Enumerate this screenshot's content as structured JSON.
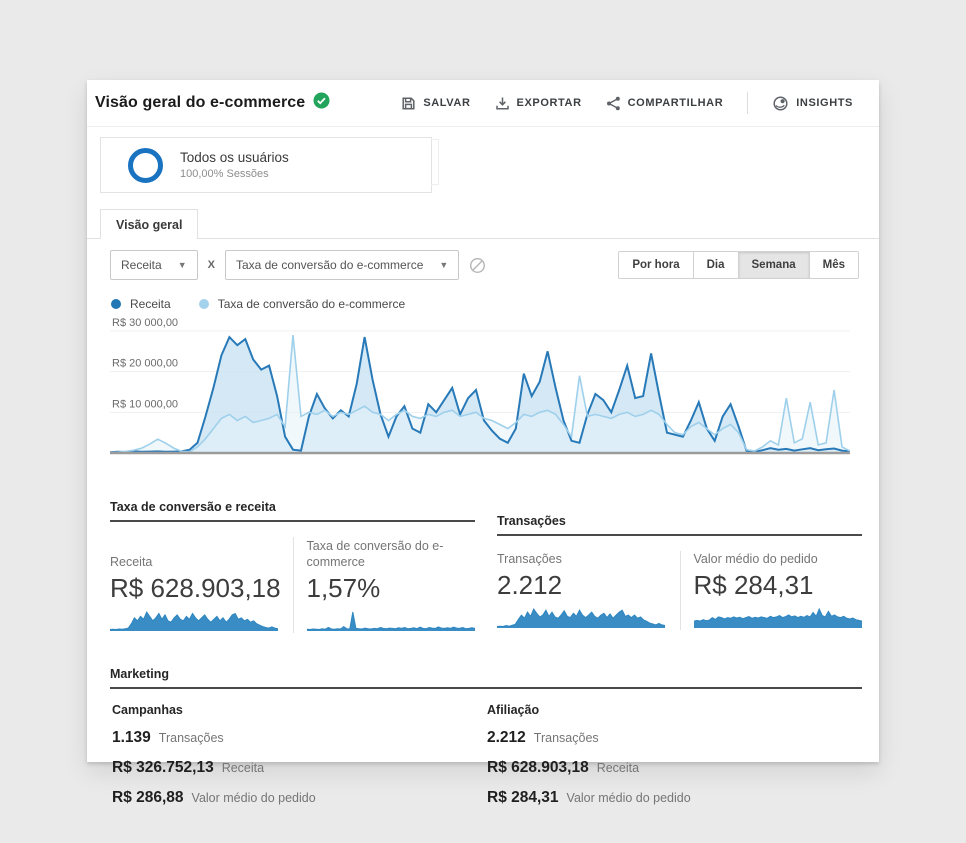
{
  "header": {
    "title": "Visão geral do e-commerce",
    "actions": [
      {
        "label": "SALVAR",
        "icon": "save-icon"
      },
      {
        "label": "EXPORTAR",
        "icon": "export-icon"
      },
      {
        "label": "COMPARTILHAR",
        "icon": "share-icon"
      },
      {
        "label": "INSIGHTS",
        "icon": "insights-icon"
      }
    ]
  },
  "segment": {
    "name": "Todos os usuários",
    "detail": "100,00% Sessões"
  },
  "tabs": [
    {
      "label": "Visão geral",
      "selected": true
    }
  ],
  "controls": {
    "metric_primary": "Receita",
    "separator": "X",
    "metric_secondary": "Taxa de conversão do e-commerce",
    "granularity": [
      {
        "label": "Por hora",
        "selected": false
      },
      {
        "label": "Dia",
        "selected": false
      },
      {
        "label": "Semana",
        "selected": true
      },
      {
        "label": "Mês",
        "selected": false
      }
    ]
  },
  "legend": [
    {
      "label": "Receita",
      "color": "#1f77b4"
    },
    {
      "label": "Taxa de conversão do e-commerce",
      "color": "#a3d3ec"
    }
  ],
  "chart_data": [
    {
      "type": "area",
      "granularity": "Semana",
      "ylim": [
        0,
        32000
      ],
      "yticks": [
        {
          "label": "R$ 30 000,00",
          "value": 30000
        },
        {
          "label": "R$ 20 000,00",
          "value": 20000
        },
        {
          "label": "R$ 10 000,00",
          "value": 10000
        }
      ],
      "legend_position": "top-left",
      "grid": true,
      "series": [
        {
          "name": "Receita",
          "color": "#2879b8",
          "fill": "#c9e2f2",
          "values": [
            200,
            300,
            250,
            400,
            300,
            350,
            400,
            300,
            350,
            400,
            800,
            2500,
            9000,
            16000,
            24000,
            28500,
            26500,
            28000,
            23000,
            20500,
            21500,
            14000,
            4000,
            800,
            600,
            9000,
            14500,
            11000,
            8500,
            10500,
            9000,
            17000,
            28500,
            18000,
            9500,
            4000,
            9000,
            11500,
            6000,
            5000,
            12000,
            10000,
            13000,
            16000,
            9500,
            13500,
            15500,
            8000,
            5500,
            3500,
            2500,
            6000,
            19500,
            14000,
            17500,
            25000,
            16000,
            8000,
            3000,
            2500,
            9500,
            14500,
            13000,
            10000,
            15500,
            21500,
            13500,
            14000,
            24500,
            14500,
            5000,
            4500,
            4000,
            8000,
            12500,
            6000,
            3000,
            9000,
            12000,
            6500,
            500,
            300,
            700,
            1200,
            800,
            1000,
            600,
            900,
            1200,
            700,
            900,
            1100,
            600,
            400
          ]
        },
        {
          "name": "Taxa de conversão do e-commerce",
          "color": "#9fd0eb",
          "fill": "#e4f2fa",
          "values": [
            100,
            200,
            400,
            700,
            1200,
            2200,
            3400,
            2400,
            1200,
            400,
            300,
            1500,
            3500,
            6000,
            8500,
            9500,
            8000,
            9000,
            7500,
            8000,
            8500,
            9500,
            6500,
            29000,
            9000,
            10000,
            9500,
            10500,
            9000,
            10000,
            9500,
            10500,
            11500,
            10000,
            9500,
            8000,
            9500,
            10500,
            9000,
            8500,
            9500,
            9000,
            10000,
            10500,
            9000,
            9500,
            10000,
            8500,
            8000,
            7000,
            6000,
            7500,
            9500,
            9000,
            10000,
            10500,
            9500,
            7000,
            4000,
            19000,
            9000,
            9500,
            9000,
            8500,
            9500,
            10000,
            9000,
            9500,
            10500,
            9500,
            7000,
            5000,
            4500,
            6500,
            7500,
            6000,
            4500,
            6000,
            7000,
            5000,
            800,
            500,
            1500,
            3000,
            2000,
            13500,
            2500,
            3500,
            12500,
            2000,
            2500,
            15500,
            1500,
            500
          ]
        }
      ]
    },
    {
      "type": "sparkline",
      "name": "Receita",
      "values": [
        0.5,
        0.6,
        0.5,
        0.7,
        0.6,
        0.8,
        1,
        2.5,
        4.5,
        3.5,
        5,
        4,
        6.5,
        5,
        3.5,
        4.5,
        6,
        4,
        5.5,
        3.5,
        3,
        4.5,
        5.5,
        4,
        3.5,
        5,
        4,
        6,
        4.5,
        3.5,
        4.5,
        5.5,
        4,
        3,
        4,
        5,
        3.5,
        4.5,
        3,
        4,
        5.5,
        6,
        4,
        4.5,
        3.5,
        4,
        3,
        3.5,
        2.5,
        2,
        1.5,
        1.2,
        1,
        1.4,
        1,
        0.8
      ]
    },
    {
      "type": "sparkline",
      "name": "Taxa de conversão do e-commerce",
      "values": [
        0.6,
        0.5,
        0.7,
        0.6,
        0.5,
        0.8,
        0.6,
        1.2,
        0.7,
        0.6,
        0.8,
        0.7,
        1.5,
        0.8,
        0.7,
        6.5,
        0.9,
        0.8,
        0.7,
        1,
        0.8,
        0.7,
        0.9,
        0.8,
        1.2,
        0.9,
        0.8,
        1,
        0.9,
        0.8,
        1.1,
        0.9,
        1.2,
        0.8,
        0.9,
        1.1,
        0.8,
        1.3,
        0.9,
        0.8,
        1.2,
        1,
        0.9,
        1.4,
        1,
        0.9,
        1.1,
        0.9,
        1.3,
        1,
        0.9,
        1.2,
        0.8,
        0.9,
        1.1,
        0.9
      ]
    },
    {
      "type": "sparkline",
      "name": "Transações",
      "values": [
        0.5,
        0.6,
        0.5,
        0.8,
        0.6,
        0.9,
        1.2,
        2.8,
        4.2,
        3.2,
        5.2,
        3.8,
        6.2,
        4.8,
        3.6,
        4.2,
        5.8,
        3.8,
        5.2,
        3.6,
        3.2,
        4.2,
        5.6,
        3.8,
        3.4,
        4.8,
        3.8,
        5.8,
        4.2,
        3.4,
        4.2,
        5.2,
        3.8,
        3.2,
        4.2,
        4.8,
        3.4,
        4.6,
        3.2,
        4.2,
        5.2,
        5.8,
        3.8,
        4.2,
        3.4,
        4.2,
        3.2,
        3.6,
        2.6,
        2.2,
        1.6,
        1.3,
        1,
        1.5,
        1,
        0.8
      ]
    },
    {
      "type": "sparkline",
      "name": "Valor médio do pedido",
      "values": [
        2,
        2.2,
        2,
        2.4,
        2.1,
        2.3,
        3,
        2.5,
        3.2,
        3,
        2.6,
        3,
        2.8,
        3.2,
        2.9,
        3.1,
        2.7,
        3,
        3.3,
        2.8,
        3.1,
        2.9,
        3.2,
        3,
        2.8,
        3.4,
        3,
        3.2,
        3.6,
        3,
        3.3,
        3.8,
        3.2,
        3.5,
        3,
        3.4,
        3.1,
        3.6,
        3.2,
        4.5,
        3.4,
        5.5,
        3.6,
        3.2,
        4.8,
        3.4,
        3.8,
        3.2,
        3,
        3.4,
        2.8,
        2.6,
        2.9,
        2.4,
        2.2,
        2
      ]
    }
  ],
  "sections": {
    "conversion": {
      "title": "Taxa de conversão e receita",
      "metrics": [
        {
          "label": "Receita",
          "value": "R$ 628.903,18"
        },
        {
          "label": "Taxa de conversão do e-commerce",
          "value": "1,57%"
        }
      ]
    },
    "transactions": {
      "title": "Transações",
      "metrics": [
        {
          "label": "Transações",
          "value": "2.212"
        },
        {
          "label": "Valor médio do pedido",
          "value": "R$ 284,31"
        }
      ]
    }
  },
  "marketing": {
    "title": "Marketing",
    "columns": [
      {
        "name": "Campanhas",
        "rows": [
          {
            "value": "1.139",
            "label": "Transações"
          },
          {
            "value": "R$ 326.752,13",
            "label": "Receita"
          },
          {
            "value": "R$ 286,88",
            "label": "Valor médio do pedido"
          }
        ]
      },
      {
        "name": "Afiliação",
        "rows": [
          {
            "value": "2.212",
            "label": "Transações"
          },
          {
            "value": "R$ 628.903,18",
            "label": "Receita"
          },
          {
            "value": "R$ 284,31",
            "label": "Valor médio do pedido"
          }
        ]
      }
    ]
  }
}
